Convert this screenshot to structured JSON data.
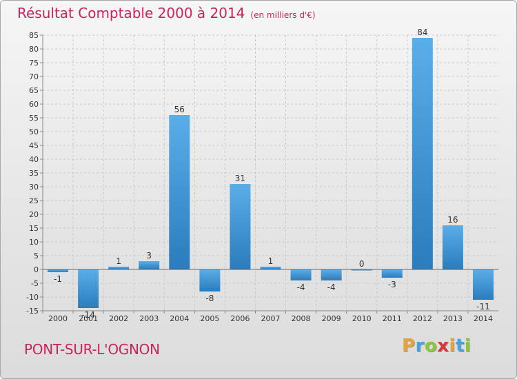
{
  "chart_data": {
    "type": "bar",
    "title": "Résultat Comptable 2000 à 2014",
    "subtitle": "(en milliers d'€)",
    "categories": [
      "2000",
      "2001",
      "2002",
      "2003",
      "2004",
      "2005",
      "2006",
      "2007",
      "2008",
      "2009",
      "2010",
      "2011",
      "2012",
      "2013",
      "2014"
    ],
    "values": [
      -1,
      -14,
      1,
      3,
      56,
      -8,
      31,
      1,
      -4,
      -4,
      0,
      -3,
      84,
      16,
      -11
    ],
    "ylim": [
      -15,
      85
    ],
    "yticks": [
      -15,
      -10,
      -5,
      0,
      5,
      10,
      15,
      20,
      25,
      30,
      35,
      40,
      45,
      50,
      55,
      60,
      65,
      70,
      75,
      80,
      85
    ],
    "grid": true,
    "xlabel": "",
    "ylabel": ""
  },
  "footer": {
    "place": "PONT-SUR-L'OGNON",
    "logo_letters": [
      "P",
      "r",
      "o",
      "x",
      "i",
      "t",
      "i"
    ],
    "logo_colors": [
      "#e8a23a",
      "#4aa3d8",
      "#8cc43c",
      "#d8363a",
      "#e8a23a",
      "#4aa3d8",
      "#8cc43c"
    ]
  },
  "colors": {
    "title": "#c8245a",
    "bar_light": "#5aaee8",
    "bar_dark": "#2a7cbc",
    "grid": "#c8c8c8",
    "axis": "#888888"
  }
}
